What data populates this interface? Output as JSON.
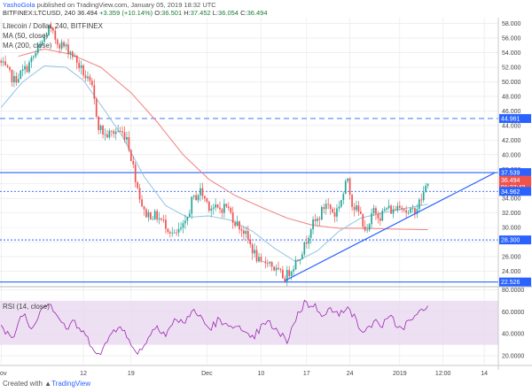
{
  "header": {
    "author": "YashoGola",
    "published_text": "published on TradingView.com, January 05, 2019 18:32 UTC",
    "symbol": "BITFINEX:LTCUSD, 240",
    "price": "36.494",
    "change": "+3.359 (+10.14%)",
    "o_label": "O:",
    "o_value": "36.501",
    "h_label": "H:",
    "h_value": "37.452",
    "l_label": "L:",
    "l_value": "36.054",
    "c_label": "C:",
    "c_value": "36.494"
  },
  "footer": {
    "prefix": "Created with",
    "brand": "TradingView"
  },
  "colors": {
    "up": "#26a69a",
    "down": "#ef5350",
    "ma50": "#90c4e4",
    "ma200": "#f08080",
    "trend": "#2962ff",
    "rsi_line": "#9c27b0",
    "rsi_band": "#e8d8f0",
    "grid": "#e6e6e6"
  },
  "chart_data": [
    {
      "type": "candlestick",
      "title": "Litecoin / Dollar, 240, BITFINEX",
      "indicators": [
        {
          "name": "MA (50, close)",
          "color": "#90c4e4"
        },
        {
          "name": "MA (200, close)",
          "color": "#f08080"
        }
      ],
      "x_ticks": [
        {
          "i": 0,
          "label": "Nov"
        },
        {
          "i": 38,
          "label": "12"
        },
        {
          "i": 60,
          "label": "19"
        },
        {
          "i": 95,
          "label": "Dec"
        },
        {
          "i": 120,
          "label": "10"
        },
        {
          "i": 141,
          "label": "17"
        },
        {
          "i": 161,
          "label": "24"
        },
        {
          "i": 184,
          "label": "2019"
        },
        {
          "i": 204,
          "label": "12:00"
        },
        {
          "i": 223,
          "label": "14"
        }
      ],
      "ylim": [
        22,
        58.8
      ],
      "y_ticks": [
        24,
        26,
        28,
        30,
        32,
        34,
        36,
        38,
        40,
        42,
        44,
        46,
        48,
        50,
        52,
        54,
        56,
        58
      ],
      "y_tick_labels": [
        "24.000",
        "26.000",
        "28.000",
        "30.000",
        "32.000",
        "34.000",
        "36.000",
        "38.000",
        "40.000",
        "42.000",
        "44.000",
        "46.000",
        "48.000",
        "50.000",
        "52.000",
        "54.000",
        "56.000",
        "58.000"
      ],
      "price_tags": [
        {
          "value": 44.961,
          "label": "44.961",
          "color": "#2962ff"
        },
        {
          "value": 37.539,
          "label": "37.539",
          "color": "#2962ff"
        },
        {
          "value": 36.494,
          "label": "36.494",
          "color": "#ef5350"
        },
        {
          "value": 35.55,
          "label": "01:27:43",
          "color": "#ef5350"
        },
        {
          "value": 34.962,
          "label": "34.962",
          "color": "#2962ff"
        },
        {
          "value": 28.3,
          "label": "28.300",
          "color": "#2962ff"
        },
        {
          "value": 22.526,
          "label": "22.526",
          "color": "#2962ff"
        }
      ],
      "hlines": [
        {
          "value": 44.961,
          "style": "dashed"
        },
        {
          "value": 37.539,
          "style": "solid"
        },
        {
          "value": 34.962,
          "style": "dotted"
        },
        {
          "value": 28.3,
          "style": "dotted"
        },
        {
          "value": 22.526,
          "style": "solid"
        }
      ],
      "trendline": [
        {
          "i": 131,
          "y": 22.7
        },
        {
          "i": 228,
          "y": 37.54
        }
      ],
      "close_anchors": [
        [
          0,
          52.5
        ],
        [
          6,
          50.2
        ],
        [
          12,
          52.0
        ],
        [
          18,
          54.8
        ],
        [
          22,
          57.3
        ],
        [
          26,
          55.5
        ],
        [
          32,
          54.2
        ],
        [
          38,
          51.2
        ],
        [
          42,
          49.0
        ],
        [
          45,
          44.0
        ],
        [
          48,
          42.6
        ],
        [
          54,
          43.3
        ],
        [
          58,
          42.5
        ],
        [
          63,
          35.5
        ],
        [
          66,
          32.0
        ],
        [
          72,
          31.5
        ],
        [
          76,
          30.4
        ],
        [
          80,
          28.8
        ],
        [
          85,
          30.3
        ],
        [
          88,
          33.6
        ],
        [
          92,
          35.0
        ],
        [
          96,
          33.0
        ],
        [
          100,
          32.4
        ],
        [
          104,
          33.0
        ],
        [
          108,
          30.8
        ],
        [
          112,
          29.5
        ],
        [
          116,
          27.0
        ],
        [
          120,
          24.7
        ],
        [
          123,
          25.6
        ],
        [
          127,
          24.0
        ],
        [
          131,
          23.1
        ],
        [
          134,
          24.4
        ],
        [
          137,
          25.8
        ],
        [
          140,
          27.4
        ],
        [
          143,
          30.2
        ],
        [
          146,
          31.0
        ],
        [
          150,
          33.4
        ],
        [
          154,
          31.8
        ],
        [
          158,
          34.6
        ],
        [
          160,
          36.9
        ],
        [
          162,
          33.3
        ],
        [
          166,
          31.6
        ],
        [
          169,
          29.1
        ],
        [
          172,
          32.5
        ],
        [
          175,
          31.6
        ],
        [
          178,
          32.7
        ],
        [
          181,
          32.2
        ],
        [
          184,
          33.4
        ],
        [
          188,
          31.8
        ],
        [
          192,
          32.8
        ],
        [
          195,
          34.6
        ],
        [
          197,
          36.5
        ]
      ],
      "ma50_anchors": [
        [
          0,
          46.5
        ],
        [
          10,
          50.0
        ],
        [
          20,
          52.2
        ],
        [
          30,
          52.0
        ],
        [
          38,
          50.2
        ],
        [
          48,
          46.0
        ],
        [
          56,
          42.5
        ],
        [
          66,
          37.0
        ],
        [
          76,
          33.0
        ],
        [
          86,
          31.4
        ],
        [
          96,
          31.6
        ],
        [
          106,
          31.0
        ],
        [
          116,
          29.5
        ],
        [
          126,
          27.2
        ],
        [
          136,
          25.3
        ],
        [
          146,
          26.8
        ],
        [
          156,
          29.5
        ],
        [
          166,
          31.3
        ],
        [
          176,
          32.0
        ],
        [
          186,
          32.6
        ],
        [
          197,
          33.2
        ]
      ],
      "ma200_anchors": [
        [
          8,
          53.5
        ],
        [
          20,
          54.5
        ],
        [
          32,
          53.8
        ],
        [
          46,
          52.0
        ],
        [
          60,
          48.5
        ],
        [
          72,
          44.5
        ],
        [
          84,
          40.0
        ],
        [
          96,
          36.6
        ],
        [
          108,
          34.4
        ],
        [
          120,
          32.8
        ],
        [
          132,
          31.3
        ],
        [
          144,
          30.3
        ],
        [
          156,
          29.9
        ],
        [
          168,
          29.9
        ],
        [
          180,
          29.8
        ],
        [
          197,
          29.7
        ]
      ]
    },
    {
      "type": "line",
      "title": "RSI (14, close)",
      "ylim": [
        12,
        82
      ],
      "y_ticks": [
        20,
        40,
        60,
        80
      ],
      "y_tick_labels": [
        "20.0000",
        "40.0000",
        "60.0000",
        "80.0000"
      ],
      "band": [
        30,
        70
      ],
      "rsi_anchors": [
        [
          0,
          46
        ],
        [
          5,
          34
        ],
        [
          10,
          60
        ],
        [
          14,
          44
        ],
        [
          18,
          62
        ],
        [
          22,
          70
        ],
        [
          26,
          57
        ],
        [
          30,
          45
        ],
        [
          34,
          50
        ],
        [
          38,
          40
        ],
        [
          42,
          30
        ],
        [
          46,
          20
        ],
        [
          50,
          38
        ],
        [
          55,
          50
        ],
        [
          60,
          28
        ],
        [
          64,
          24
        ],
        [
          68,
          37
        ],
        [
          72,
          48
        ],
        [
          76,
          40
        ],
        [
          80,
          52
        ],
        [
          84,
          50
        ],
        [
          88,
          60
        ],
        [
          92,
          56
        ],
        [
          96,
          44
        ],
        [
          100,
          52
        ],
        [
          104,
          46
        ],
        [
          108,
          50
        ],
        [
          112,
          39
        ],
        [
          116,
          35
        ],
        [
          120,
          46
        ],
        [
          124,
          50
        ],
        [
          128,
          40
        ],
        [
          132,
          34
        ],
        [
          136,
          54
        ],
        [
          140,
          68
        ],
        [
          144,
          66
        ],
        [
          148,
          59
        ],
        [
          152,
          62
        ],
        [
          156,
          56
        ],
        [
          160,
          68
        ],
        [
          164,
          50
        ],
        [
          168,
          40
        ],
        [
          172,
          52
        ],
        [
          176,
          48
        ],
        [
          180,
          54
        ],
        [
          184,
          45
        ],
        [
          188,
          50
        ],
        [
          192,
          56
        ],
        [
          197,
          68
        ]
      ]
    }
  ]
}
